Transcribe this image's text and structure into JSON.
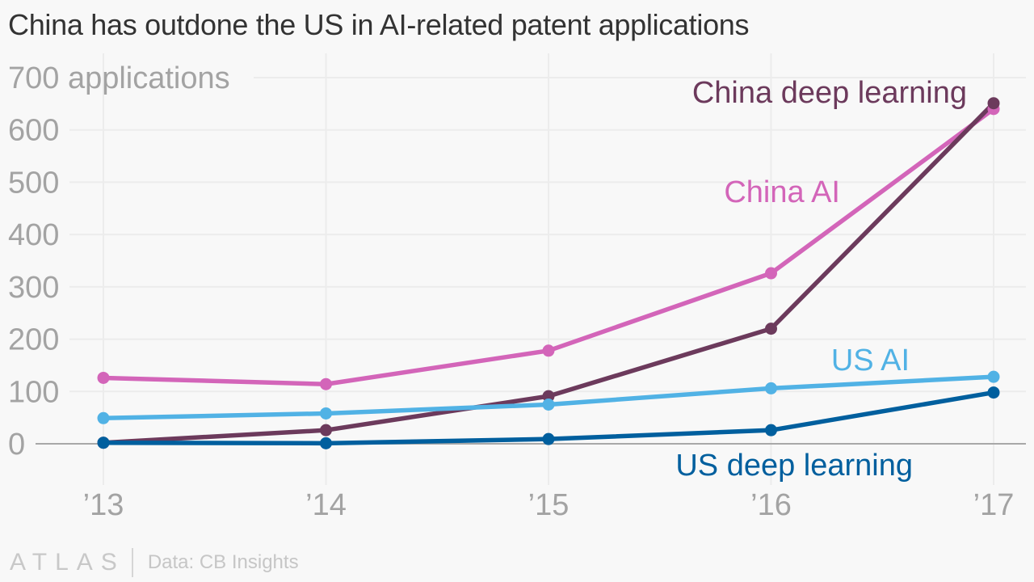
{
  "title": "China has outdone the US in AI-related patent applications",
  "footer": {
    "logo": "ATLAS",
    "source": "Data: CB Insights"
  },
  "chart_data": {
    "type": "line",
    "title": "China has outdone the US in AI-related patent applications",
    "xlabel": "",
    "ylabel": "applications",
    "x": [
      "’13",
      "’14",
      "’15",
      "’16",
      "’17"
    ],
    "ylim": [
      0,
      700
    ],
    "yticks": [
      0,
      100,
      200,
      300,
      400,
      500,
      600,
      700
    ],
    "ytick_labels": [
      "0",
      "100",
      "200",
      "300",
      "400",
      "500",
      "600",
      "700 applications"
    ],
    "grid": true,
    "legend": "inline-labels",
    "series": [
      {
        "name": "China AI",
        "color": "#d365b9",
        "values": [
          126,
          114,
          178,
          326,
          640
        ]
      },
      {
        "name": "China deep learning",
        "color": "#6c3a5c",
        "values": [
          2,
          26,
          91,
          220,
          651
        ]
      },
      {
        "name": "US AI",
        "color": "#51b2e5",
        "values": [
          49,
          58,
          75,
          106,
          128
        ]
      },
      {
        "name": "US deep learning",
        "color": "#005f9e",
        "values": [
          2,
          1,
          9,
          26,
          98
        ]
      }
    ]
  }
}
